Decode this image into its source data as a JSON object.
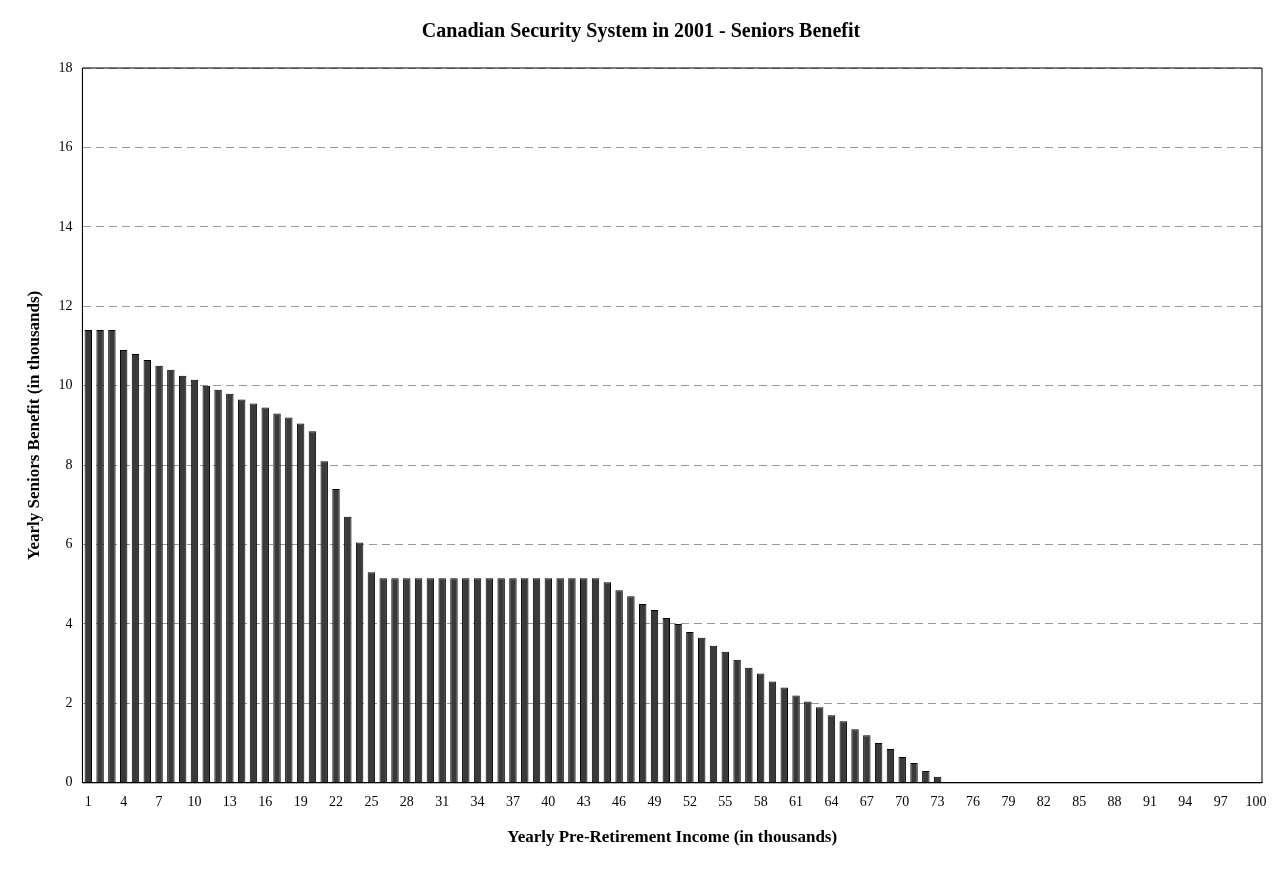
{
  "chart_data": {
    "type": "bar",
    "title": "Canadian Security System in 2001 - Seniors Benefit",
    "xlabel": "Yearly Pre-Retirement Income (in thousands)",
    "ylabel": "Yearly Seniors Benefit (in thousands)",
    "categories": [
      "1",
      null,
      null,
      "4",
      null,
      null,
      "7",
      null,
      null,
      "10",
      null,
      null,
      "13",
      null,
      null,
      "16",
      null,
      null,
      "19",
      null,
      null,
      "22",
      null,
      null,
      "25",
      null,
      null,
      "28",
      null,
      null,
      "31",
      null,
      null,
      "34",
      null,
      null,
      "37",
      null,
      null,
      "40",
      null,
      null,
      "43",
      null,
      null,
      "46",
      null,
      null,
      "49",
      null,
      null,
      "52",
      null,
      null,
      "55",
      null,
      null,
      "58",
      null,
      null,
      "61",
      null,
      null,
      "64",
      null,
      null,
      "67",
      null,
      null,
      "70",
      null,
      null,
      "73",
      null,
      null,
      "76",
      null,
      null,
      "79",
      null,
      null,
      "82",
      null,
      null,
      "85",
      null,
      null,
      "88",
      null,
      null,
      "91",
      null,
      null,
      "94",
      null,
      null,
      "97",
      null,
      null,
      "100"
    ],
    "values": [
      11.4,
      11.4,
      11.4,
      10.9,
      10.8,
      10.65,
      10.5,
      10.4,
      10.25,
      10.15,
      10.0,
      9.9,
      9.8,
      9.65,
      9.55,
      9.45,
      9.3,
      9.2,
      9.05,
      8.85,
      8.1,
      7.4,
      6.7,
      6.05,
      5.3,
      5.15,
      5.15,
      5.15,
      5.15,
      5.15,
      5.15,
      5.15,
      5.15,
      5.15,
      5.15,
      5.15,
      5.15,
      5.15,
      5.15,
      5.15,
      5.15,
      5.15,
      5.15,
      5.15,
      5.05,
      4.85,
      4.7,
      4.5,
      4.35,
      4.15,
      4.0,
      3.8,
      3.65,
      3.45,
      3.3,
      3.1,
      2.9,
      2.75,
      2.55,
      2.4,
      2.2,
      2.05,
      1.9,
      1.7,
      1.55,
      1.35,
      1.2,
      1.0,
      0.85,
      0.65,
      0.5,
      0.3,
      0.15,
      0,
      0,
      0,
      0,
      0,
      0,
      0,
      0,
      0,
      0,
      0,
      0,
      0,
      0,
      0,
      0,
      0,
      0,
      0,
      0,
      0,
      0,
      0,
      0,
      0,
      0,
      0
    ],
    "color": "#3a3a3a",
    "ylim": [
      0,
      18
    ],
    "yticks": [
      0,
      2,
      4,
      6,
      8,
      10,
      12,
      14,
      16,
      18
    ],
    "grid": "y"
  }
}
